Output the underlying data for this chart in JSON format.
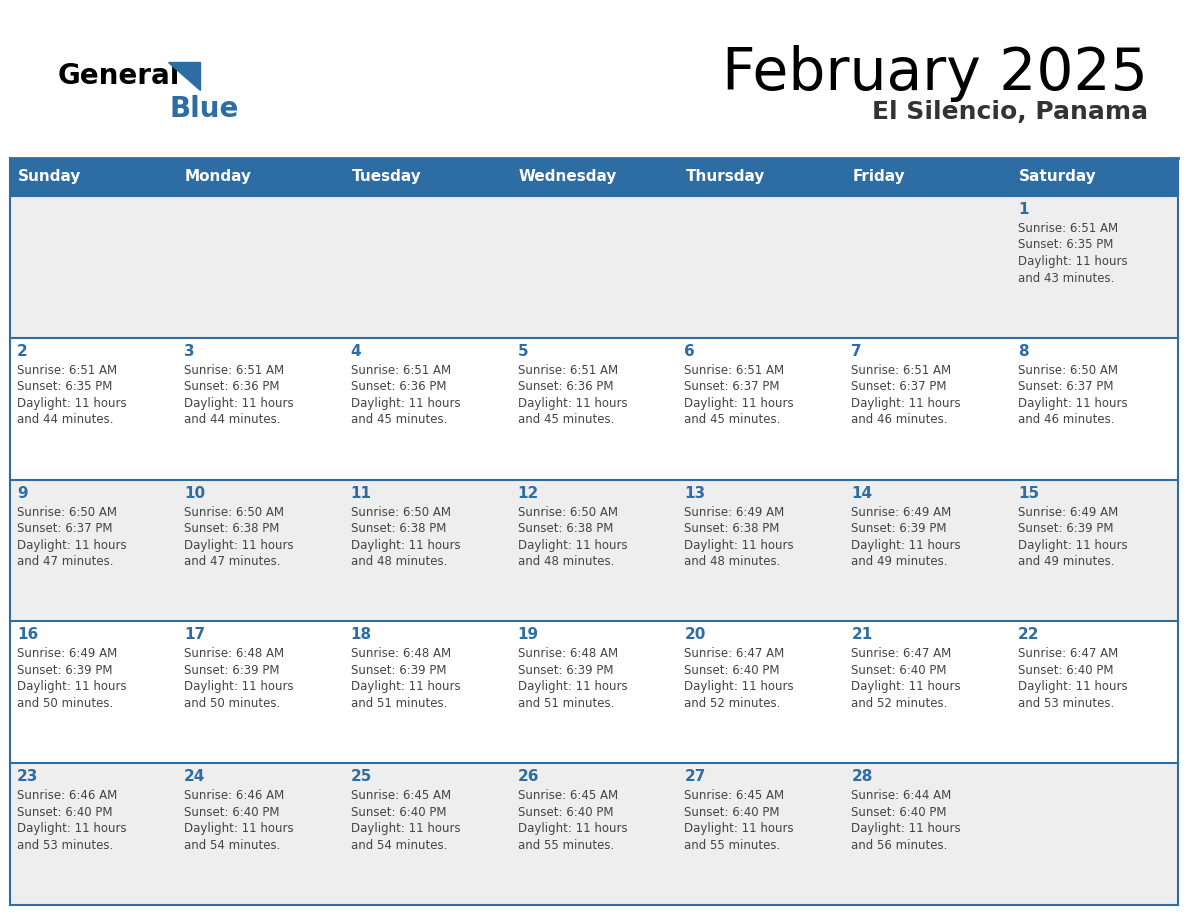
{
  "title": "February 2025",
  "subtitle": "El Silencio, Panama",
  "header_bg_color": "#2e6da4",
  "header_text_color": "#ffffff",
  "day_names": [
    "Sunday",
    "Monday",
    "Tuesday",
    "Wednesday",
    "Thursday",
    "Friday",
    "Saturday"
  ],
  "cell_bg_even": "#eeeeee",
  "cell_bg_odd": "#ffffff",
  "day_num_color": "#2e6da4",
  "info_text_color": "#444444",
  "border_color": "#2e6da4",
  "days": [
    {
      "day": 1,
      "col": 6,
      "row": 0,
      "sunrise": "6:51 AM",
      "sunset": "6:35 PM",
      "daylight": "11 hours and 43 minutes"
    },
    {
      "day": 2,
      "col": 0,
      "row": 1,
      "sunrise": "6:51 AM",
      "sunset": "6:35 PM",
      "daylight": "11 hours and 44 minutes"
    },
    {
      "day": 3,
      "col": 1,
      "row": 1,
      "sunrise": "6:51 AM",
      "sunset": "6:36 PM",
      "daylight": "11 hours and 44 minutes"
    },
    {
      "day": 4,
      "col": 2,
      "row": 1,
      "sunrise": "6:51 AM",
      "sunset": "6:36 PM",
      "daylight": "11 hours and 45 minutes"
    },
    {
      "day": 5,
      "col": 3,
      "row": 1,
      "sunrise": "6:51 AM",
      "sunset": "6:36 PM",
      "daylight": "11 hours and 45 minutes"
    },
    {
      "day": 6,
      "col": 4,
      "row": 1,
      "sunrise": "6:51 AM",
      "sunset": "6:37 PM",
      "daylight": "11 hours and 45 minutes"
    },
    {
      "day": 7,
      "col": 5,
      "row": 1,
      "sunrise": "6:51 AM",
      "sunset": "6:37 PM",
      "daylight": "11 hours and 46 minutes"
    },
    {
      "day": 8,
      "col": 6,
      "row": 1,
      "sunrise": "6:50 AM",
      "sunset": "6:37 PM",
      "daylight": "11 hours and 46 minutes"
    },
    {
      "day": 9,
      "col": 0,
      "row": 2,
      "sunrise": "6:50 AM",
      "sunset": "6:37 PM",
      "daylight": "11 hours and 47 minutes"
    },
    {
      "day": 10,
      "col": 1,
      "row": 2,
      "sunrise": "6:50 AM",
      "sunset": "6:38 PM",
      "daylight": "11 hours and 47 minutes"
    },
    {
      "day": 11,
      "col": 2,
      "row": 2,
      "sunrise": "6:50 AM",
      "sunset": "6:38 PM",
      "daylight": "11 hours and 48 minutes"
    },
    {
      "day": 12,
      "col": 3,
      "row": 2,
      "sunrise": "6:50 AM",
      "sunset": "6:38 PM",
      "daylight": "11 hours and 48 minutes"
    },
    {
      "day": 13,
      "col": 4,
      "row": 2,
      "sunrise": "6:49 AM",
      "sunset": "6:38 PM",
      "daylight": "11 hours and 48 minutes"
    },
    {
      "day": 14,
      "col": 5,
      "row": 2,
      "sunrise": "6:49 AM",
      "sunset": "6:39 PM",
      "daylight": "11 hours and 49 minutes"
    },
    {
      "day": 15,
      "col": 6,
      "row": 2,
      "sunrise": "6:49 AM",
      "sunset": "6:39 PM",
      "daylight": "11 hours and 49 minutes"
    },
    {
      "day": 16,
      "col": 0,
      "row": 3,
      "sunrise": "6:49 AM",
      "sunset": "6:39 PM",
      "daylight": "11 hours and 50 minutes"
    },
    {
      "day": 17,
      "col": 1,
      "row": 3,
      "sunrise": "6:48 AM",
      "sunset": "6:39 PM",
      "daylight": "11 hours and 50 minutes"
    },
    {
      "day": 18,
      "col": 2,
      "row": 3,
      "sunrise": "6:48 AM",
      "sunset": "6:39 PM",
      "daylight": "11 hours and 51 minutes"
    },
    {
      "day": 19,
      "col": 3,
      "row": 3,
      "sunrise": "6:48 AM",
      "sunset": "6:39 PM",
      "daylight": "11 hours and 51 minutes"
    },
    {
      "day": 20,
      "col": 4,
      "row": 3,
      "sunrise": "6:47 AM",
      "sunset": "6:40 PM",
      "daylight": "11 hours and 52 minutes"
    },
    {
      "day": 21,
      "col": 5,
      "row": 3,
      "sunrise": "6:47 AM",
      "sunset": "6:40 PM",
      "daylight": "11 hours and 52 minutes"
    },
    {
      "day": 22,
      "col": 6,
      "row": 3,
      "sunrise": "6:47 AM",
      "sunset": "6:40 PM",
      "daylight": "11 hours and 53 minutes"
    },
    {
      "day": 23,
      "col": 0,
      "row": 4,
      "sunrise": "6:46 AM",
      "sunset": "6:40 PM",
      "daylight": "11 hours and 53 minutes"
    },
    {
      "day": 24,
      "col": 1,
      "row": 4,
      "sunrise": "6:46 AM",
      "sunset": "6:40 PM",
      "daylight": "11 hours and 54 minutes"
    },
    {
      "day": 25,
      "col": 2,
      "row": 4,
      "sunrise": "6:45 AM",
      "sunset": "6:40 PM",
      "daylight": "11 hours and 54 minutes"
    },
    {
      "day": 26,
      "col": 3,
      "row": 4,
      "sunrise": "6:45 AM",
      "sunset": "6:40 PM",
      "daylight": "11 hours and 55 minutes"
    },
    {
      "day": 27,
      "col": 4,
      "row": 4,
      "sunrise": "6:45 AM",
      "sunset": "6:40 PM",
      "daylight": "11 hours and 55 minutes"
    },
    {
      "day": 28,
      "col": 5,
      "row": 4,
      "sunrise": "6:44 AM",
      "sunset": "6:40 PM",
      "daylight": "11 hours and 56 minutes"
    }
  ]
}
